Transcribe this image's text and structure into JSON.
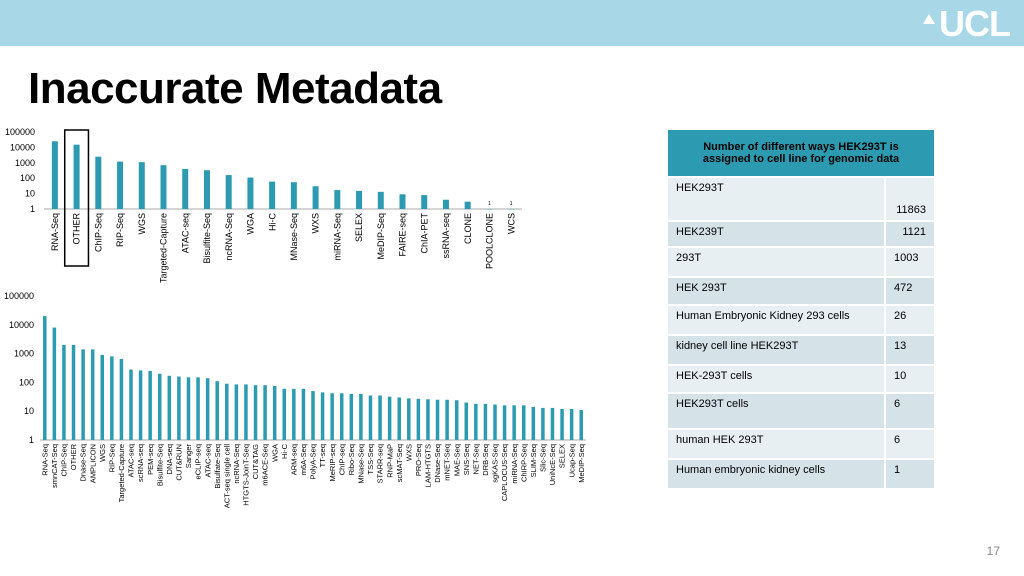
{
  "header": {
    "logo_text": "UCL",
    "bar_color": "#a8d8e8"
  },
  "title": "Inaccurate Metadata",
  "slide_number": "17",
  "colors": {
    "bar": "#2c9bb1",
    "axis": "#aaaaaa",
    "highlight_box": "#000000"
  },
  "chart_data": [
    {
      "type": "bar",
      "scale": "log",
      "ylim": [
        1,
        100000
      ],
      "yticks": [
        "100000",
        "10000",
        "1000",
        "100",
        "10",
        "1"
      ],
      "highlight_category": "OTHER",
      "categories": [
        "RNA-Seq",
        "OTHER",
        "ChIP-Seq",
        "RIP-Seq",
        "WGS",
        "Targeted-Capture",
        "ATAC-seq",
        "Bisulfite-Seq",
        "ncRNA-Seq",
        "WGA",
        "Hi-C",
        "MNase-Seq",
        "WXS",
        "miRNA-Seq",
        "SELEX",
        "MeDIP-Seq",
        "FAIRE-seq",
        "ChIA-PET",
        "ssRNA-seq",
        "CLONE",
        "POOLCLONE",
        "WCS"
      ],
      "values": [
        25000,
        15000,
        2500,
        1200,
        1100,
        700,
        400,
        330,
        160,
        110,
        60,
        55,
        30,
        17,
        15,
        13,
        9,
        8,
        4,
        3,
        1,
        1
      ]
    },
    {
      "type": "bar",
      "scale": "log",
      "ylim": [
        1,
        100000
      ],
      "yticks": [
        "100000",
        "10000",
        "1000",
        "100",
        "10",
        "1"
      ],
      "categories": [
        "RNA-Seq",
        "smnCAT-Seq",
        "ChIP-Seq",
        "OTHER",
        "Dnase-Seq",
        "AMPLICON",
        "WGS",
        "RIP-Seq",
        "Targeted-Capture",
        "ATAC-seq",
        "scRNA-seq",
        "PEM-seq",
        "Bisulfite-Seq",
        "DNA-seq",
        "CUT&RUN",
        "Sanger",
        "eCLIP-seq",
        "ATAC-seq",
        "Bisulfate-Seq",
        "ACT-seq single cell",
        "ncRNA-Seq",
        "HTGTS-JoinT-Seq",
        "CUT&TAG",
        "m6ACE-Seq",
        "WGA",
        "Hi-C",
        "ARM-seq",
        "m6A-Seq",
        "PolyA-Seq",
        "TT-seq",
        "MeRIP-seq",
        "ChIP-seq",
        "Ribo-Seq",
        "MNase-Seq",
        "TSS-Seq",
        "STARR-seq",
        "RNP-MaP",
        "scMAT-Seq",
        "WXS",
        "PRO-Seq",
        "LAM-HTGTS",
        "DNase-Seq",
        "mNET-Seq",
        "MAE-Seq",
        "SNS-Seq",
        "NET-Seq",
        "DRB-Seq",
        "sgKAS-Seq",
        "CAPLOCUS-Seq",
        "miRNA-Seq",
        "ChIRP-Seq",
        "SLIM-Seq",
        "Slic-Seq",
        "UniNcE-Seq",
        "SELEX",
        "Ucap-Seq",
        "MeDIP-Seq"
      ],
      "values": [
        20000,
        8000,
        2000,
        2000,
        1400,
        1400,
        900,
        800,
        650,
        280,
        260,
        250,
        200,
        170,
        160,
        150,
        150,
        140,
        110,
        90,
        85,
        85,
        80,
        80,
        75,
        60,
        60,
        60,
        50,
        45,
        42,
        42,
        40,
        40,
        35,
        35,
        32,
        30,
        28,
        27,
        26,
        25,
        25,
        24,
        20,
        18,
        18,
        17,
        16,
        16,
        16,
        14,
        13,
        13,
        12,
        12,
        11
      ]
    }
  ],
  "table": {
    "header": "Number of different ways HEK293T is assigned to cell line for genomic data",
    "rows": [
      {
        "name": "HEK293T",
        "value": "11863"
      },
      {
        "name": "HEK239T",
        "value": "1121"
      },
      {
        "name": "293T",
        "value": "1003"
      },
      {
        "name": "HEK 293T",
        "value": "472"
      },
      {
        "name": "Human Embryonic Kidney 293 cells",
        "value": "26"
      },
      {
        "name": "kidney cell line HEK293T",
        "value": "13"
      },
      {
        "name": "HEK-293T cells",
        "value": "10"
      },
      {
        "name": "HEK293T cells",
        "value": "6"
      },
      {
        "name": "human HEK 293T",
        "value": "6"
      },
      {
        "name": "Human embryonic kidney cells",
        "value": "1"
      }
    ]
  }
}
